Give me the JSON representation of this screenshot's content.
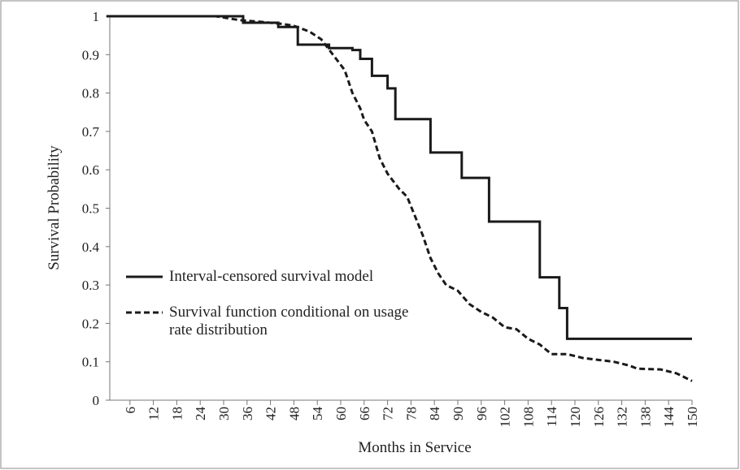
{
  "chart_data": {
    "type": "line",
    "x_label": "Months in Service",
    "y_label": "Survival Probability",
    "xlim": [
      0,
      150
    ],
    "ylim": [
      0,
      1
    ],
    "xticks": [
      6,
      12,
      18,
      24,
      30,
      36,
      42,
      48,
      54,
      60,
      66,
      72,
      78,
      84,
      90,
      96,
      102,
      108,
      114,
      120,
      126,
      132,
      138,
      144,
      150
    ],
    "yticks": [
      0,
      0.1,
      0.2,
      0.3,
      0.4,
      0.5,
      0.6,
      0.7,
      0.8,
      0.9,
      1
    ],
    "series": [
      {
        "name": "Interval-censored survival model",
        "color": "#1a1a1a",
        "style": "solid",
        "x": [
          0,
          35,
          35,
          44,
          44,
          49,
          49,
          57,
          57,
          63,
          63,
          65,
          65,
          68,
          68,
          72,
          72,
          74,
          74,
          83,
          83,
          91,
          91,
          98,
          98,
          111,
          111,
          116,
          116,
          118,
          118,
          150
        ],
        "values": [
          1,
          1,
          0.983,
          0.983,
          0.972,
          0.972,
          0.926,
          0.926,
          0.917,
          0.917,
          0.912,
          0.912,
          0.889,
          0.889,
          0.845,
          0.845,
          0.812,
          0.812,
          0.732,
          0.732,
          0.645,
          0.645,
          0.579,
          0.579,
          0.465,
          0.465,
          0.32,
          0.32,
          0.24,
          0.24,
          0.16,
          0.16
        ]
      },
      {
        "name": "Survival function conditional on usage rate distribution",
        "color": "#1a1a1a",
        "style": "dashed",
        "x": [
          0,
          28,
          34,
          40,
          45,
          48,
          52,
          55,
          58,
          61,
          63,
          65,
          66,
          68,
          70,
          72,
          75,
          77,
          79,
          81,
          83,
          85,
          87,
          90,
          93,
          96,
          99,
          102,
          105,
          108,
          111,
          114,
          118,
          122,
          126,
          130,
          134,
          136,
          142,
          146,
          149,
          150
        ],
        "values": [
          1,
          1,
          0.99,
          0.985,
          0.98,
          0.975,
          0.96,
          0.94,
          0.9,
          0.86,
          0.8,
          0.76,
          0.73,
          0.7,
          0.63,
          0.59,
          0.55,
          0.53,
          0.48,
          0.43,
          0.37,
          0.33,
          0.3,
          0.285,
          0.25,
          0.23,
          0.215,
          0.19,
          0.185,
          0.16,
          0.145,
          0.12,
          0.12,
          0.11,
          0.105,
          0.1,
          0.09,
          0.082,
          0.08,
          0.07,
          0.055,
          0.05
        ]
      }
    ],
    "legend": "inside-lower-left"
  }
}
